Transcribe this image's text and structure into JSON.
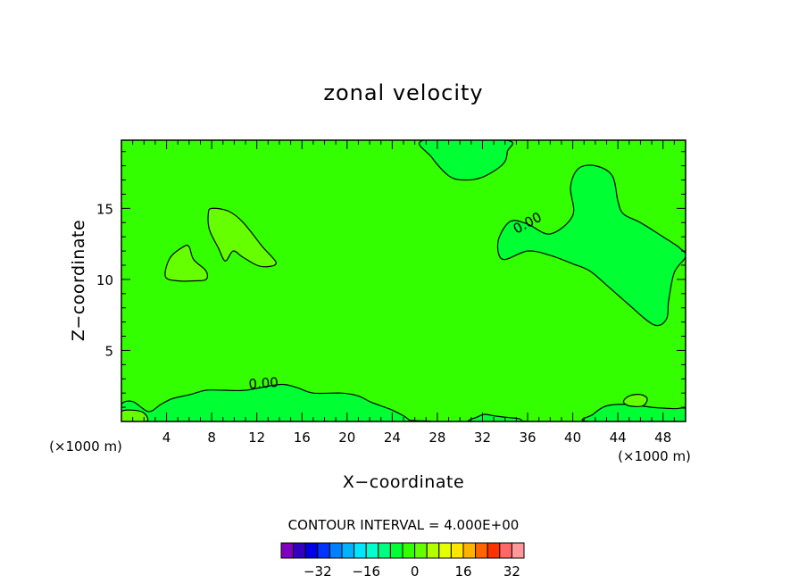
{
  "chart_data": {
    "type": "contour",
    "title": "zonal velocity",
    "xlabel": "X−coordinate",
    "ylabel": "Z−coordinate",
    "x_unit_left": "(×1000 m)",
    "x_unit_right": "(×1000 m)",
    "xlim": [
      0,
      50
    ],
    "ylim": [
      0,
      19.8
    ],
    "x_ticks": [
      4,
      8,
      12,
      16,
      20,
      24,
      28,
      32,
      36,
      40,
      44,
      48
    ],
    "x_tick_labels": [
      "4",
      "8",
      "12",
      "16",
      "20",
      "24",
      "28",
      "32",
      "36",
      "40",
      "44",
      "48"
    ],
    "y_ticks": [
      5,
      10,
      15
    ],
    "y_tick_labels": [
      "5",
      "10",
      "15"
    ],
    "contour_interval_text": "CONTOUR INTERVAL = 4.000E+00",
    "contour_labels": [
      "0.00",
      "0.00"
    ],
    "background_value": 2,
    "background_color": "#33ff00",
    "regions": [
      {
        "value": -2,
        "color": "#00ff33",
        "points": [
          [
            33.5,
            13
          ],
          [
            34.5,
            14.1
          ],
          [
            36,
            13.9
          ],
          [
            38,
            13.2
          ],
          [
            40,
            14.5
          ],
          [
            39.8,
            16.5
          ],
          [
            40.5,
            17.8
          ],
          [
            42,
            18
          ],
          [
            43.5,
            17.3
          ],
          [
            44,
            15.5
          ],
          [
            44.5,
            14.6
          ],
          [
            46,
            14
          ],
          [
            48,
            13
          ],
          [
            49.5,
            12.2
          ],
          [
            50,
            11.6
          ],
          [
            49,
            10.5
          ],
          [
            48.5,
            8.5
          ],
          [
            48.3,
            7.2
          ],
          [
            47.2,
            6.8
          ],
          [
            45,
            8.2
          ],
          [
            43,
            9.6
          ],
          [
            41.5,
            10.6
          ],
          [
            40,
            11.1
          ],
          [
            38,
            11.7
          ],
          [
            36,
            12
          ],
          [
            34,
            11.4
          ],
          [
            33.4,
            11.9
          ]
        ]
      },
      {
        "value": -2,
        "color": "#00ff33",
        "points": [
          [
            26.8,
            19.8
          ],
          [
            27.5,
            18.6
          ],
          [
            29,
            17.3
          ],
          [
            30.3,
            17
          ],
          [
            32,
            17.2
          ],
          [
            33.8,
            18.1
          ],
          [
            34.2,
            19
          ],
          [
            34.1,
            19.8
          ]
        ]
      },
      {
        "value": 6,
        "color": "#66ff00",
        "points": [
          [
            8,
            15
          ],
          [
            9.5,
            14.8
          ],
          [
            10.8,
            14
          ],
          [
            12.5,
            12.3
          ],
          [
            13.7,
            11.2
          ],
          [
            13,
            10.9
          ],
          [
            12,
            11
          ],
          [
            10.7,
            11.6
          ],
          [
            9.9,
            12
          ],
          [
            9.2,
            11.3
          ],
          [
            8.6,
            12.2
          ],
          [
            7.8,
            13.5
          ],
          [
            7.7,
            14.6
          ]
        ]
      },
      {
        "value": 6,
        "color": "#66ff00",
        "points": [
          [
            3.9,
            10.2
          ],
          [
            4.3,
            11.5
          ],
          [
            5.5,
            12.3
          ],
          [
            6,
            12.3
          ],
          [
            6.4,
            11.4
          ],
          [
            7.5,
            10.6
          ],
          [
            7.5,
            10
          ],
          [
            6.5,
            9.9
          ],
          [
            5,
            9.9
          ]
        ]
      },
      {
        "value": -2,
        "color": "#00ff33",
        "points": [
          [
            0,
            0
          ],
          [
            0,
            1.2
          ],
          [
            1,
            1.4
          ],
          [
            2.4,
            0.7
          ],
          [
            3.5,
            1.2
          ],
          [
            4.5,
            1.6
          ],
          [
            6.1,
            1.9
          ],
          [
            7.5,
            2.2
          ],
          [
            9,
            2.2
          ],
          [
            11,
            2.2
          ],
          [
            14,
            2.6
          ],
          [
            15.5,
            2.4
          ],
          [
            17,
            2
          ],
          [
            19.5,
            2
          ],
          [
            21,
            1.8
          ],
          [
            22,
            1.4
          ],
          [
            23,
            1.1
          ],
          [
            24,
            0.8
          ],
          [
            25,
            0.4
          ],
          [
            25.5,
            0.1
          ],
          [
            25.5,
            0
          ]
        ]
      },
      {
        "value": -2,
        "color": "#00ff33",
        "points": [
          [
            31,
            0
          ],
          [
            31.5,
            0.3
          ],
          [
            32.2,
            0.5
          ],
          [
            33,
            0.4
          ],
          [
            34,
            0.3
          ],
          [
            35.2,
            0.2
          ],
          [
            35.5,
            0.05
          ],
          [
            35.5,
            0
          ]
        ]
      },
      {
        "value": -2,
        "color": "#00ff33",
        "points": [
          [
            41.4,
            0
          ],
          [
            41.8,
            0.5
          ],
          [
            43,
            1.1
          ],
          [
            45,
            1.2
          ],
          [
            47,
            1
          ],
          [
            49,
            0.9
          ],
          [
            50,
            0.9
          ],
          [
            50,
            0
          ]
        ]
      },
      {
        "value": 6,
        "color": "#66ff00",
        "points": [
          [
            44.5,
            1.4
          ],
          [
            45,
            1.8
          ],
          [
            46,
            1.9
          ],
          [
            46.6,
            1.6
          ],
          [
            46.2,
            1.1
          ],
          [
            45,
            1.1
          ]
        ]
      },
      {
        "value": 6,
        "color": "#66ff00",
        "points": [
          [
            0,
            0
          ],
          [
            0,
            0.7
          ],
          [
            1,
            0.8
          ],
          [
            2,
            0.6
          ],
          [
            2.2,
            0
          ]
        ]
      }
    ]
  }
}
